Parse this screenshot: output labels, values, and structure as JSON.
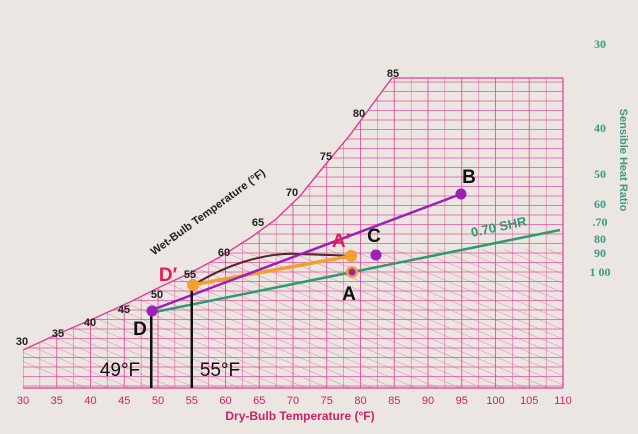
{
  "chart_data": {
    "type": "psychrometric",
    "xlabel": "Dry-Bulb Temperature (°F)",
    "x_ticks": [
      30,
      35,
      40,
      45,
      50,
      55,
      60,
      65,
      70,
      75,
      80,
      85,
      90,
      95,
      100,
      105,
      110
    ],
    "xlim": [
      30,
      110
    ],
    "wet_bulb_label": "Wet-Bulb Temperature (°F)",
    "wet_bulb_ticks": [
      "30",
      "35",
      "40",
      "45",
      "50",
      "55",
      "60",
      "65",
      "70",
      "75",
      "80",
      "85"
    ],
    "shr_label": "Sensible Heat Ratio",
    "shr_ticks": [
      "30",
      "40",
      "50",
      "60",
      ".70",
      "80",
      "90",
      "1 00"
    ],
    "shr_line_label": "0.70 SHR",
    "points": [
      {
        "label": "A",
        "dry_bulb": 78,
        "color": "#111111"
      },
      {
        "label": "A′",
        "dry_bulb": 78,
        "color": "#e8195a"
      },
      {
        "label": "B",
        "dry_bulb": 95,
        "color": "#111111"
      },
      {
        "label": "C",
        "dry_bulb": 82,
        "color": "#111111"
      },
      {
        "label": "D",
        "dry_bulb": 49,
        "color": "#111111"
      },
      {
        "label": "D′",
        "dry_bulb": 55,
        "color": "#e8195a"
      }
    ],
    "vertical_markers": [
      {
        "label": "49°F",
        "dry_bulb": 49
      },
      {
        "label": "55°F",
        "dry_bulb": 55
      }
    ],
    "colors": {
      "grid": "#e23d93",
      "process_line": "#9b1fb8",
      "shr_line": "#2f9a70",
      "reheat_line": "#f0a030",
      "point_fill": "#9b1fb8",
      "point_ring": "#f0a030"
    }
  }
}
